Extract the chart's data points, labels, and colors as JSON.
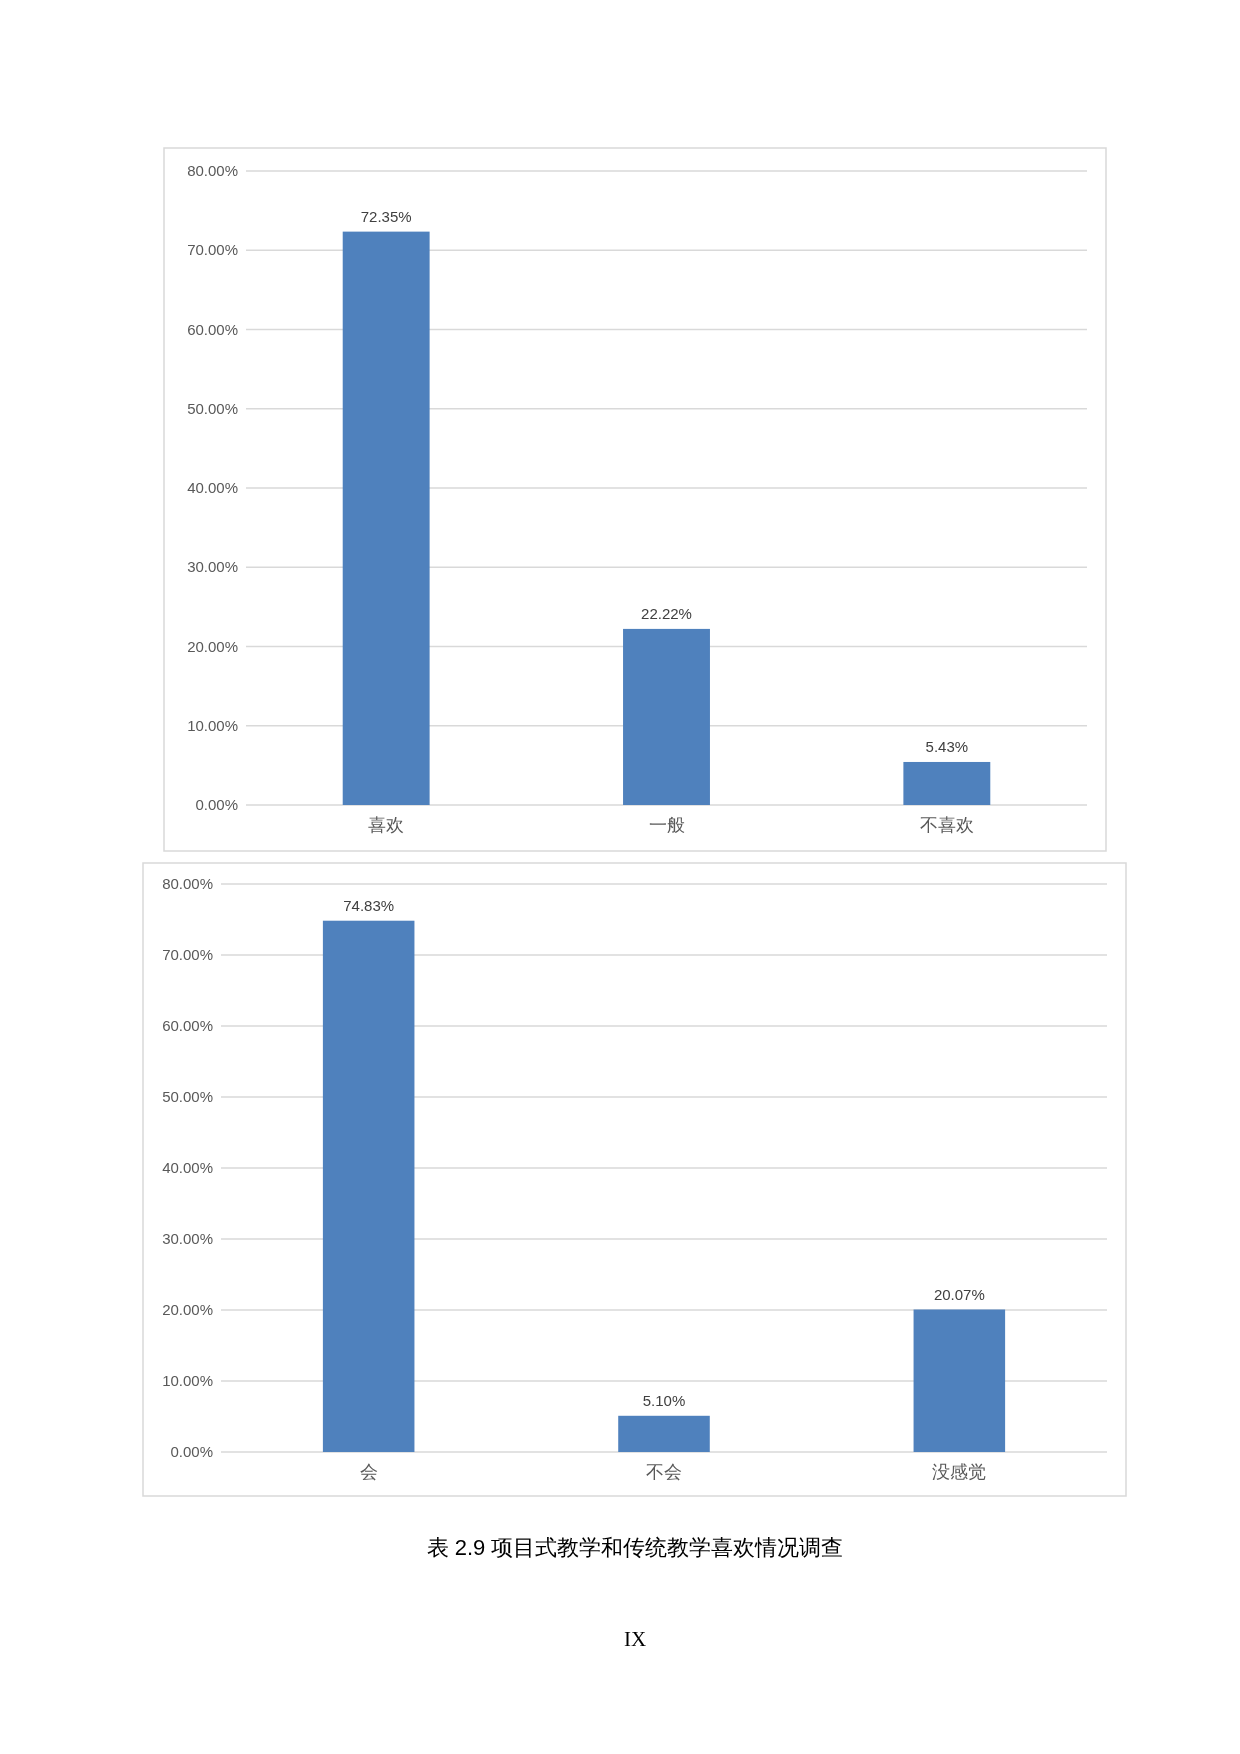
{
  "chart_data": [
    {
      "type": "bar",
      "categories": [
        "喜欢",
        "一般",
        "不喜欢"
      ],
      "values": [
        72.35,
        22.22,
        5.43
      ],
      "color": "#4f81bd",
      "ylim": [
        0,
        80
      ],
      "yticks": [
        {
          "value": 0,
          "label": "0.00%"
        },
        {
          "value": 10,
          "label": "10.00%"
        },
        {
          "value": 20,
          "label": "20.00%"
        },
        {
          "value": 30,
          "label": "30.00%"
        },
        {
          "value": 40,
          "label": "40.00%"
        },
        {
          "value": 50,
          "label": "50.00%"
        },
        {
          "value": 60,
          "label": "60.00%"
        },
        {
          "value": 70,
          "label": "70.00%"
        },
        {
          "value": 80,
          "label": "80.00%"
        }
      ],
      "grid": "y",
      "value_labels": [
        "72.35%",
        "22.22%",
        "5.43%"
      ]
    },
    {
      "type": "bar",
      "categories": [
        "会",
        "不会",
        "没感觉"
      ],
      "values": [
        74.83,
        5.1,
        20.07
      ],
      "color": "#4f81bd",
      "ylim": [
        0,
        80
      ],
      "yticks": [
        {
          "value": 0,
          "label": "0.00%"
        },
        {
          "value": 10,
          "label": "10.00%"
        },
        {
          "value": 20,
          "label": "20.00%"
        },
        {
          "value": 30,
          "label": "30.00%"
        },
        {
          "value": 40,
          "label": "40.00%"
        },
        {
          "value": 50,
          "label": "50.00%"
        },
        {
          "value": 60,
          "label": "60.00%"
        },
        {
          "value": 70,
          "label": "70.00%"
        },
        {
          "value": 80,
          "label": "80.00%"
        }
      ],
      "grid": "y",
      "value_labels": [
        "74.83%",
        "5.10%",
        "20.07%"
      ],
      "annotations": [
        "表 2.9  项目式教学和传统教学喜欢情况调查",
        "IX"
      ]
    }
  ]
}
